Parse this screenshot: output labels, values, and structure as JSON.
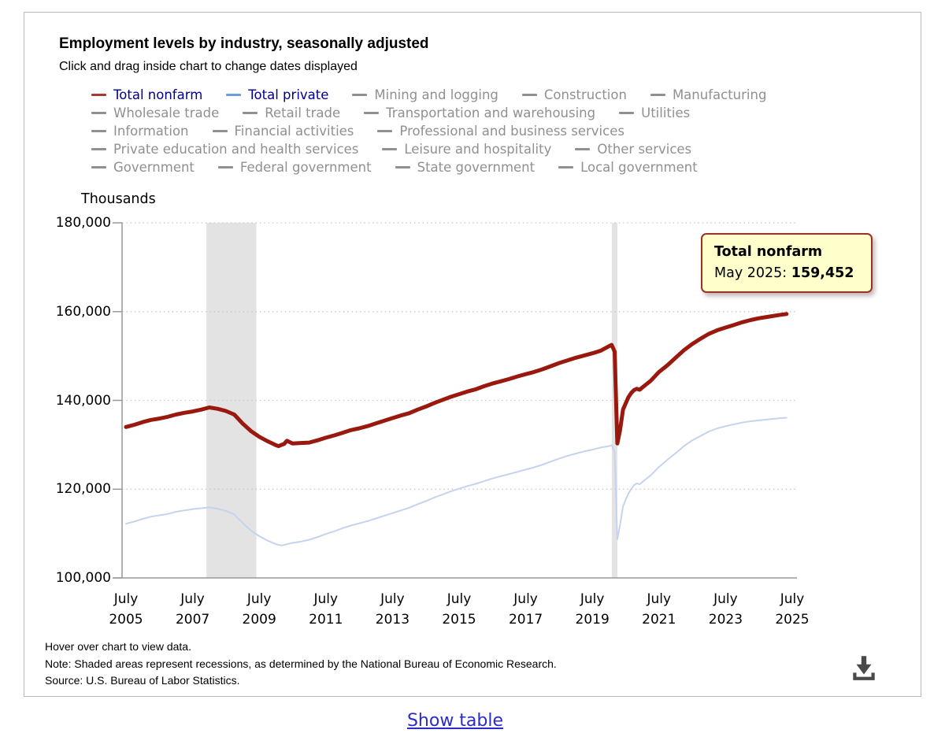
{
  "header": {
    "title": "Employment levels by industry, seasonally adjusted",
    "subtitle": "Click and drag inside chart to change dates displayed"
  },
  "legend": {
    "active_text_color": "#00008b",
    "inactive_color": "#909090",
    "rows": [
      [
        {
          "label": "Total nonfarm",
          "active": true,
          "dash": "#a33c2e"
        },
        {
          "label": "Total private",
          "active": true,
          "dash": "#6f9bd8"
        },
        {
          "label": "Mining and logging",
          "active": false
        },
        {
          "label": "Construction",
          "active": false
        },
        {
          "label": "Manufacturing",
          "active": false
        }
      ],
      [
        {
          "label": "Wholesale trade",
          "active": false
        },
        {
          "label": "Retail trade",
          "active": false
        },
        {
          "label": "Transportation and warehousing",
          "active": false
        },
        {
          "label": "Utilities",
          "active": false
        }
      ],
      [
        {
          "label": "Information",
          "active": false
        },
        {
          "label": "Financial activities",
          "active": false
        },
        {
          "label": "Professional and business services",
          "active": false
        }
      ],
      [
        {
          "label": "Private education and health services",
          "active": false
        },
        {
          "label": "Leisure and hospitality",
          "active": false
        },
        {
          "label": "Other services",
          "active": false
        }
      ],
      [
        {
          "label": "Government",
          "active": false
        },
        {
          "label": "Federal government",
          "active": false
        },
        {
          "label": "State government",
          "active": false
        },
        {
          "label": "Local government",
          "active": false
        }
      ]
    ]
  },
  "chart_data": {
    "type": "line",
    "title": "Employment levels by industry, seasonally adjusted",
    "xlabel": "",
    "ylabel": "Thousands",
    "ylim": [
      100000,
      180000
    ],
    "grid": "dotted horizontal gridlines",
    "legend_position": "top",
    "axis_color": "#999999",
    "grid_color": "#c8c8c8",
    "recession_color": "#e3e3e3",
    "y_ticks": [
      {
        "value": 180000,
        "label": "180,000"
      },
      {
        "value": 160000,
        "label": "160,000"
      },
      {
        "value": 140000,
        "label": "140,000"
      },
      {
        "value": 120000,
        "label": "120,000"
      },
      {
        "value": 100000,
        "label": "100,000"
      }
    ],
    "x_ticks": [
      {
        "x": 2005.5,
        "month": "July",
        "year": "2005"
      },
      {
        "x": 2007.5,
        "month": "July",
        "year": "2007"
      },
      {
        "x": 2009.5,
        "month": "July",
        "year": "2009"
      },
      {
        "x": 2011.5,
        "month": "July",
        "year": "2011"
      },
      {
        "x": 2013.5,
        "month": "July",
        "year": "2013"
      },
      {
        "x": 2015.5,
        "month": "July",
        "year": "2015"
      },
      {
        "x": 2017.5,
        "month": "July",
        "year": "2017"
      },
      {
        "x": 2019.5,
        "month": "July",
        "year": "2019"
      },
      {
        "x": 2021.5,
        "month": "July",
        "year": "2021"
      },
      {
        "x": 2023.5,
        "month": "July",
        "year": "2023"
      },
      {
        "x": 2025.5,
        "month": "July",
        "year": "2025"
      }
    ],
    "recessions": [
      {
        "start": 2007.917,
        "end": 2009.417
      },
      {
        "start": 2020.083,
        "end": 2020.25
      }
    ],
    "series": [
      {
        "name": "Total nonfarm",
        "color": "#99190e",
        "width": 5,
        "points": [
          [
            2005.5,
            134005
          ],
          [
            2005.75,
            134500
          ],
          [
            2006,
            135100
          ],
          [
            2006.25,
            135600
          ],
          [
            2006.5,
            135900
          ],
          [
            2006.75,
            136300
          ],
          [
            2007,
            136800
          ],
          [
            2007.25,
            137200
          ],
          [
            2007.5,
            137500
          ],
          [
            2007.75,
            137900
          ],
          [
            2008,
            138400
          ],
          [
            2008.25,
            138100
          ],
          [
            2008.5,
            137600
          ],
          [
            2008.75,
            136800
          ],
          [
            2009,
            134800
          ],
          [
            2009.25,
            133100
          ],
          [
            2009.5,
            131800
          ],
          [
            2009.75,
            130800
          ],
          [
            2010,
            129900
          ],
          [
            2010.08,
            129700
          ],
          [
            2010.25,
            130200
          ],
          [
            2010.33,
            130900
          ],
          [
            2010.5,
            130300
          ],
          [
            2010.75,
            130400
          ],
          [
            2011,
            130500
          ],
          [
            2011.25,
            131000
          ],
          [
            2011.5,
            131600
          ],
          [
            2011.75,
            132100
          ],
          [
            2012,
            132700
          ],
          [
            2012.25,
            133300
          ],
          [
            2012.5,
            133700
          ],
          [
            2012.75,
            134200
          ],
          [
            2013,
            134800
          ],
          [
            2013.25,
            135400
          ],
          [
            2013.5,
            136000
          ],
          [
            2013.75,
            136600
          ],
          [
            2014,
            137100
          ],
          [
            2014.25,
            137900
          ],
          [
            2014.5,
            138600
          ],
          [
            2014.75,
            139400
          ],
          [
            2015,
            140100
          ],
          [
            2015.25,
            140800
          ],
          [
            2015.5,
            141400
          ],
          [
            2015.75,
            142000
          ],
          [
            2016,
            142500
          ],
          [
            2016.25,
            143200
          ],
          [
            2016.5,
            143800
          ],
          [
            2016.75,
            144300
          ],
          [
            2017,
            144800
          ],
          [
            2017.25,
            145400
          ],
          [
            2017.5,
            145900
          ],
          [
            2017.75,
            146400
          ],
          [
            2018,
            147000
          ],
          [
            2018.25,
            147700
          ],
          [
            2018.5,
            148400
          ],
          [
            2018.75,
            149000
          ],
          [
            2019,
            149600
          ],
          [
            2019.25,
            150100
          ],
          [
            2019.5,
            150600
          ],
          [
            2019.75,
            151200
          ],
          [
            2020,
            152200
          ],
          [
            2020.08,
            152500
          ],
          [
            2020.17,
            151000
          ],
          [
            2020.25,
            130300
          ],
          [
            2020.33,
            133200
          ],
          [
            2020.42,
            137900
          ],
          [
            2020.5,
            139300
          ],
          [
            2020.58,
            140700
          ],
          [
            2020.67,
            141700
          ],
          [
            2020.75,
            142300
          ],
          [
            2020.83,
            142600
          ],
          [
            2020.92,
            142400
          ],
          [
            2021,
            142900
          ],
          [
            2021.25,
            144400
          ],
          [
            2021.5,
            146400
          ],
          [
            2021.75,
            147900
          ],
          [
            2022,
            149600
          ],
          [
            2022.25,
            151300
          ],
          [
            2022.5,
            152700
          ],
          [
            2022.75,
            153900
          ],
          [
            2023,
            155000
          ],
          [
            2023.25,
            155800
          ],
          [
            2023.5,
            156400
          ],
          [
            2023.75,
            157000
          ],
          [
            2024,
            157600
          ],
          [
            2024.25,
            158100
          ],
          [
            2024.5,
            158500
          ],
          [
            2024.75,
            158800
          ],
          [
            2025,
            159100
          ],
          [
            2025.17,
            159300
          ],
          [
            2025.33,
            159452
          ]
        ]
      },
      {
        "name": "Total private",
        "color": "#c5d3ee",
        "width": 2,
        "points": [
          [
            2005.5,
            112200
          ],
          [
            2005.75,
            112700
          ],
          [
            2006,
            113300
          ],
          [
            2006.25,
            113800
          ],
          [
            2006.5,
            114100
          ],
          [
            2006.75,
            114400
          ],
          [
            2007,
            114900
          ],
          [
            2007.25,
            115200
          ],
          [
            2007.5,
            115500
          ],
          [
            2007.75,
            115700
          ],
          [
            2008,
            115900
          ],
          [
            2008.25,
            115600
          ],
          [
            2008.5,
            115100
          ],
          [
            2008.75,
            114300
          ],
          [
            2009,
            112400
          ],
          [
            2009.25,
            110700
          ],
          [
            2009.5,
            109400
          ],
          [
            2009.75,
            108400
          ],
          [
            2010,
            107600
          ],
          [
            2010.17,
            107300
          ],
          [
            2010.33,
            107600
          ],
          [
            2010.5,
            107900
          ],
          [
            2010.75,
            108200
          ],
          [
            2011,
            108600
          ],
          [
            2011.25,
            109200
          ],
          [
            2011.5,
            109900
          ],
          [
            2011.75,
            110500
          ],
          [
            2012,
            111200
          ],
          [
            2012.25,
            111800
          ],
          [
            2012.5,
            112300
          ],
          [
            2012.75,
            112800
          ],
          [
            2013,
            113400
          ],
          [
            2013.25,
            114000
          ],
          [
            2013.5,
            114600
          ],
          [
            2013.75,
            115200
          ],
          [
            2014,
            115800
          ],
          [
            2014.25,
            116600
          ],
          [
            2014.5,
            117300
          ],
          [
            2014.75,
            118100
          ],
          [
            2015,
            118800
          ],
          [
            2015.25,
            119500
          ],
          [
            2015.5,
            120100
          ],
          [
            2015.75,
            120700
          ],
          [
            2016,
            121200
          ],
          [
            2016.25,
            121800
          ],
          [
            2016.5,
            122400
          ],
          [
            2016.75,
            122900
          ],
          [
            2017,
            123400
          ],
          [
            2017.25,
            123900
          ],
          [
            2017.5,
            124400
          ],
          [
            2017.75,
            124900
          ],
          [
            2018,
            125500
          ],
          [
            2018.25,
            126200
          ],
          [
            2018.5,
            126900
          ],
          [
            2018.75,
            127500
          ],
          [
            2019,
            128000
          ],
          [
            2019.25,
            128500
          ],
          [
            2019.5,
            128900
          ],
          [
            2019.75,
            129400
          ],
          [
            2020,
            129700
          ],
          [
            2020.08,
            129900
          ],
          [
            2020.17,
            128400
          ],
          [
            2020.25,
            108700
          ],
          [
            2020.33,
            111900
          ],
          [
            2020.42,
            116100
          ],
          [
            2020.5,
            117600
          ],
          [
            2020.58,
            119000
          ],
          [
            2020.67,
            120100
          ],
          [
            2020.75,
            120900
          ],
          [
            2020.83,
            121300
          ],
          [
            2020.92,
            121100
          ],
          [
            2021,
            121600
          ],
          [
            2021.25,
            123100
          ],
          [
            2021.5,
            125000
          ],
          [
            2021.75,
            126600
          ],
          [
            2022,
            128100
          ],
          [
            2022.25,
            129700
          ],
          [
            2022.5,
            131000
          ],
          [
            2022.75,
            132000
          ],
          [
            2023,
            133000
          ],
          [
            2023.25,
            133700
          ],
          [
            2023.5,
            134200
          ],
          [
            2023.75,
            134600
          ],
          [
            2024,
            135000
          ],
          [
            2024.25,
            135300
          ],
          [
            2024.5,
            135500
          ],
          [
            2024.75,
            135700
          ],
          [
            2025,
            135900
          ],
          [
            2025.33,
            136100
          ]
        ]
      }
    ]
  },
  "tooltip": {
    "series": "Total nonfarm",
    "date_label": "May 2025:",
    "value": "159,452",
    "bg": "#ffffcc",
    "border": "#993326"
  },
  "notes": [
    "Hover over chart to view data.",
    "Note: Shaded areas represent recessions, as determined by the National Bureau of Economic Research.",
    "Source: U.S. Bureau of Labor Statistics."
  ],
  "footer": {
    "show_table": "Show table"
  },
  "icons": {
    "download": "download-icon"
  }
}
